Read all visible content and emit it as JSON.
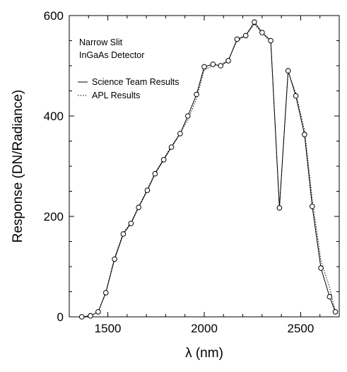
{
  "chart_data": {
    "type": "line",
    "title": "",
    "xlabel": "λ (nm)",
    "ylabel": "Response (DN/Radiance)",
    "xlim": [
      1300,
      2700
    ],
    "ylim": [
      0,
      600
    ],
    "xticks": [
      1500,
      2000,
      2500
    ],
    "yticks": [
      0,
      200,
      400,
      600
    ],
    "grid": false,
    "legend_position": "top-left",
    "annotations": [
      "Narrow Slit",
      "InGaAs Detector"
    ],
    "series": [
      {
        "name": "Science Team Results",
        "style": "solid",
        "markers": "circle",
        "x": [
          1365,
          1410,
          1450,
          1490,
          1535,
          1580,
          1620,
          1660,
          1705,
          1745,
          1790,
          1830,
          1875,
          1915,
          1960,
          2000,
          2045,
          2085,
          2125,
          2170,
          2215,
          2260,
          2300,
          2345,
          2390,
          2435,
          2475,
          2520,
          2560,
          2605,
          2650,
          2680
        ],
        "y": [
          0,
          2,
          10,
          48,
          115,
          165,
          186,
          218,
          252,
          285,
          313,
          338,
          365,
          400,
          443,
          498,
          503,
          500,
          510,
          553,
          560,
          587,
          566,
          550,
          217,
          490,
          440,
          363,
          220,
          97,
          40,
          10
        ]
      },
      {
        "name": "APL Results",
        "style": "dotted",
        "markers": "none",
        "x": [
          1365,
          1410,
          1450,
          1490,
          1535,
          1580,
          1620,
          1660,
          1705,
          1745,
          1790,
          1830,
          1875,
          1915,
          1960,
          2000,
          2045,
          2085,
          2125,
          2170,
          2215,
          2260,
          2300,
          2345,
          2390,
          2435,
          2475,
          2520,
          2560,
          2605,
          2650,
          2680
        ],
        "y": [
          0,
          2,
          10,
          50,
          118,
          167,
          188,
          220,
          254,
          287,
          315,
          340,
          366,
          392,
          435,
          492,
          500,
          502,
          512,
          550,
          560,
          583,
          565,
          548,
          218,
          488,
          445,
          372,
          235,
          112,
          58,
          10
        ]
      }
    ]
  }
}
